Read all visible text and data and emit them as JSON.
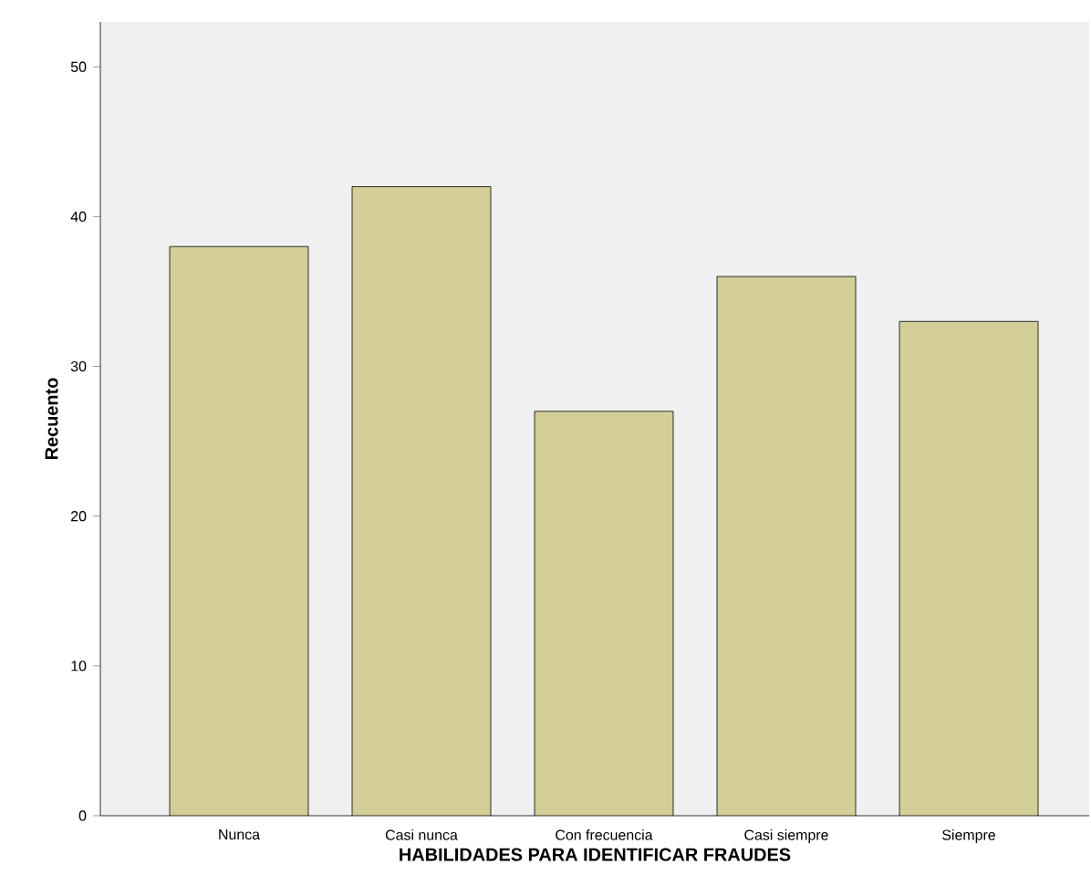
{
  "chart_data": {
    "type": "bar",
    "xlabel": "HABILIDADES PARA IDENTIFICAR FRAUDES",
    "ylabel": "Recuento",
    "categories": [
      "Nunca",
      "Casi nunca",
      "Con frecuencia",
      "Casi siempre",
      "Siempre"
    ],
    "values": [
      38,
      42,
      27,
      36,
      33
    ],
    "color": "#d3ce97",
    "ylim": [
      0,
      53
    ],
    "yticks": [
      0,
      10,
      20,
      30,
      40,
      50
    ]
  }
}
